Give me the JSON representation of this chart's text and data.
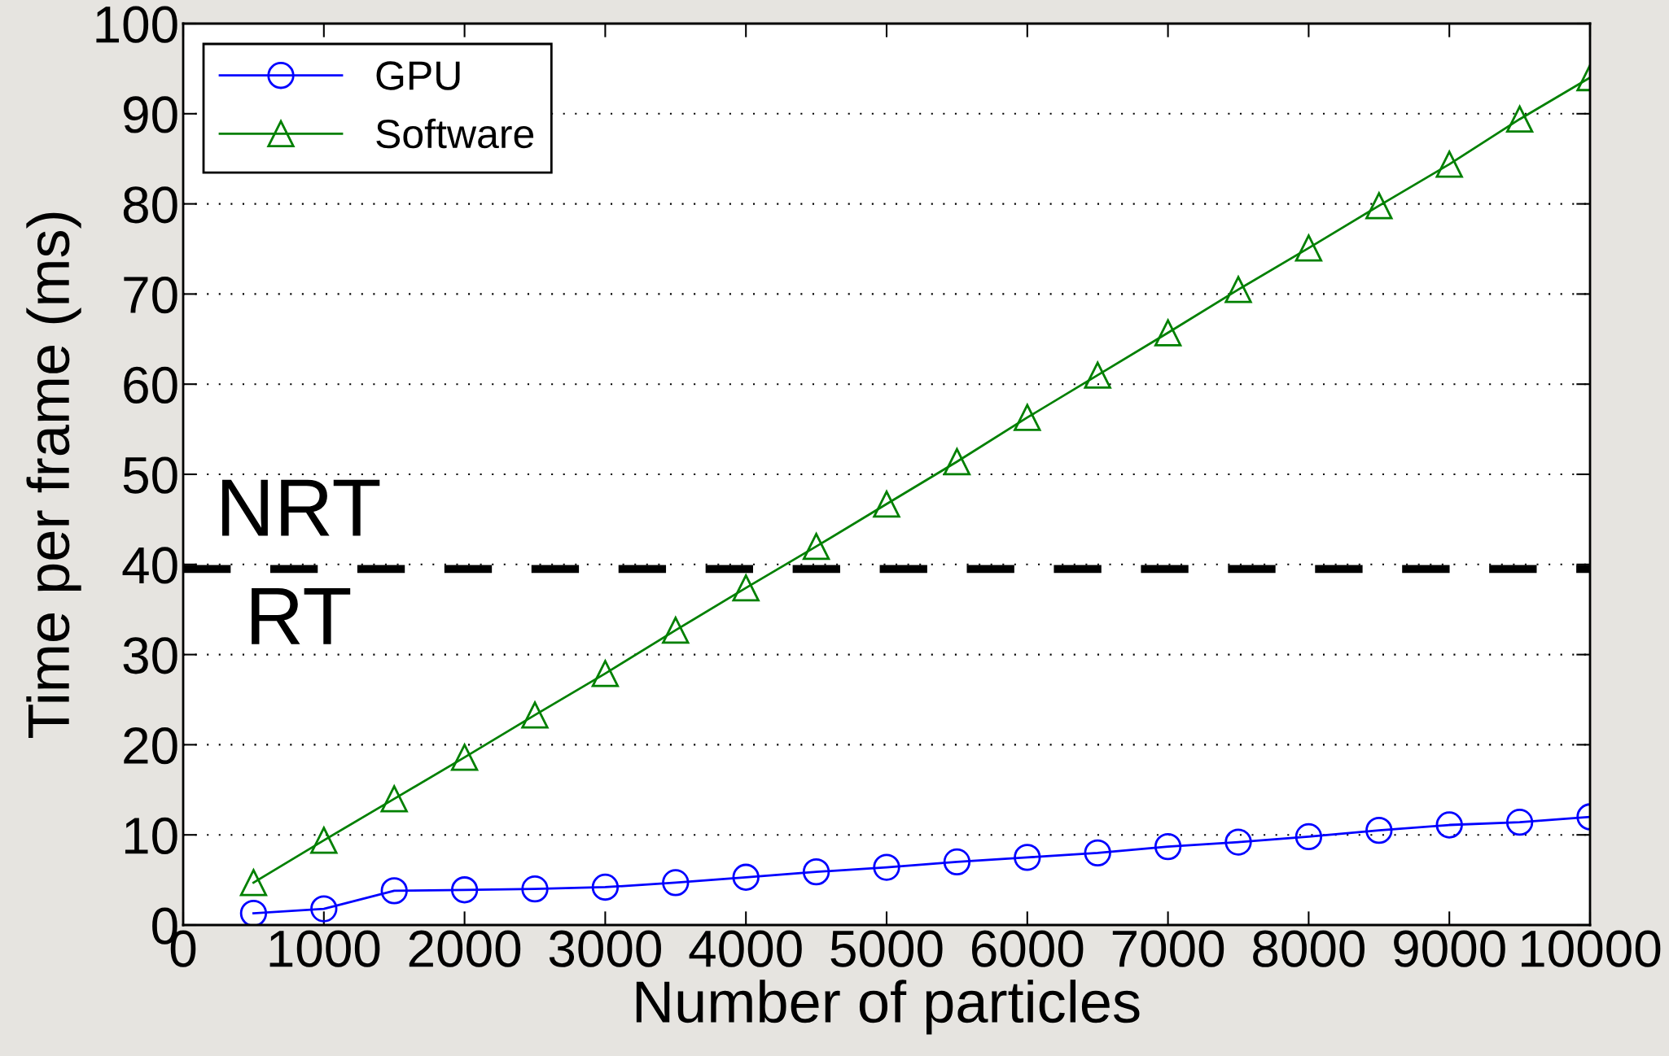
{
  "chart_data": {
    "type": "line",
    "xlabel": "Number of particles",
    "ylabel": "Time per frame (ms)",
    "x": [
      500,
      1000,
      1500,
      2000,
      2500,
      3000,
      3500,
      4000,
      4500,
      5000,
      5500,
      6000,
      6500,
      7000,
      7500,
      8000,
      8500,
      9000,
      9500,
      10000
    ],
    "series": [
      {
        "name": "GPU",
        "color": "#0000ff",
        "marker": "circle",
        "values": [
          1.3,
          1.8,
          3.8,
          3.9,
          4.0,
          4.2,
          4.7,
          5.3,
          5.9,
          6.4,
          7.0,
          7.5,
          8.0,
          8.7,
          9.2,
          9.8,
          10.5,
          11.1,
          11.4,
          12.0
        ]
      },
      {
        "name": "Software",
        "color": "#008000",
        "marker": "triangle",
        "values": [
          4.7,
          9.4,
          14.0,
          18.6,
          23.3,
          27.9,
          32.7,
          37.4,
          42.0,
          46.7,
          51.4,
          56.3,
          61.0,
          65.7,
          70.5,
          75.1,
          79.8,
          84.4,
          89.4,
          94.0
        ]
      }
    ],
    "xlim": [
      0,
      10000
    ],
    "xticks": [
      0,
      1000,
      2000,
      3000,
      4000,
      5000,
      6000,
      7000,
      8000,
      9000,
      10000
    ],
    "ylim": [
      0,
      100
    ],
    "yticks": [
      0,
      10,
      20,
      30,
      40,
      50,
      60,
      70,
      80,
      90,
      100
    ],
    "grid": "y",
    "legend": "top left",
    "line_style": "solid",
    "ref_lines": [
      {
        "axis": "y",
        "value": 39.5,
        "color": "#000000",
        "line_style": "dashed"
      }
    ],
    "annotations": [
      "NRT",
      "RT"
    ]
  }
}
